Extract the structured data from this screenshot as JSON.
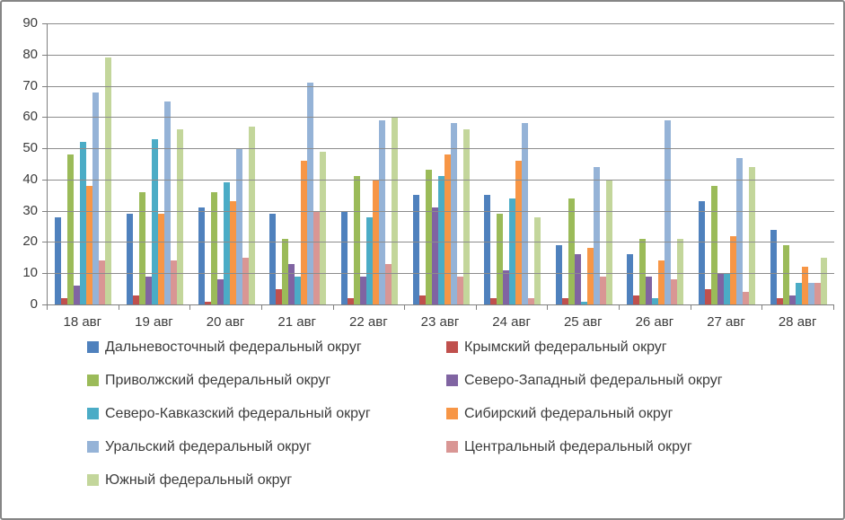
{
  "chart_data": {
    "type": "bar",
    "title": "",
    "xlabel": "",
    "ylabel": "",
    "ylim": [
      0,
      90
    ],
    "ytick_step": 10,
    "yticks": [
      "0",
      "10",
      "20",
      "30",
      "40",
      "50",
      "60",
      "70",
      "80",
      "90"
    ],
    "grid": true,
    "legend_position": "bottom-two-columns",
    "categories": [
      "18 авг",
      "19 авг",
      "20 авг",
      "21 авг",
      "22 авг",
      "23 авг",
      "24 авг",
      "25 авг",
      "26 авг",
      "27 авг",
      "28 авг"
    ],
    "series": [
      {
        "name": "Дальневосточный федеральный округ",
        "color": "#4F81BD",
        "values": [
          28,
          29,
          31,
          29,
          30,
          35,
          35,
          19,
          16,
          33,
          24
        ]
      },
      {
        "name": "Крымский федеральный округ",
        "color": "#C0504D",
        "values": [
          2,
          3,
          1,
          5,
          2,
          3,
          2,
          2,
          3,
          5,
          2
        ]
      },
      {
        "name": "Приволжский федеральный округ",
        "color": "#9BBB59",
        "values": [
          48,
          36,
          36,
          21,
          41,
          43,
          29,
          34,
          21,
          38,
          19
        ]
      },
      {
        "name": "Северо-Западный федеральный округ",
        "color": "#8064A2",
        "values": [
          6,
          9,
          8,
          13,
          9,
          31,
          11,
          16,
          9,
          10,
          3
        ]
      },
      {
        "name": "Северо-Кавказский федеральный округ",
        "color": "#4BACC6",
        "values": [
          52,
          53,
          39,
          9,
          28,
          41,
          34,
          1,
          2,
          10,
          7
        ]
      },
      {
        "name": "Сибирский федеральный округ",
        "color": "#F79646",
        "values": [
          38,
          29,
          33,
          46,
          40,
          48,
          46,
          18,
          14,
          22,
          12
        ]
      },
      {
        "name": "Уральский федеральный округ",
        "color": "#95B3D7",
        "values": [
          68,
          65,
          50,
          71,
          59,
          58,
          58,
          44,
          59,
          47,
          7
        ]
      },
      {
        "name": "Центральный федеральный округ",
        "color": "#D99694",
        "values": [
          14,
          14,
          15,
          30,
          13,
          9,
          2,
          9,
          8,
          4,
          7
        ]
      },
      {
        "name": "Южный федеральный округ",
        "color": "#C3D69B",
        "values": [
          79,
          56,
          57,
          49,
          60,
          56,
          28,
          40,
          21,
          44,
          15
        ]
      }
    ],
    "colors": {
      "gridline": "#8c8c8c",
      "axis": "#808080",
      "text": "#3c3c3c",
      "background": "#ffffff",
      "border": "#868686"
    }
  }
}
